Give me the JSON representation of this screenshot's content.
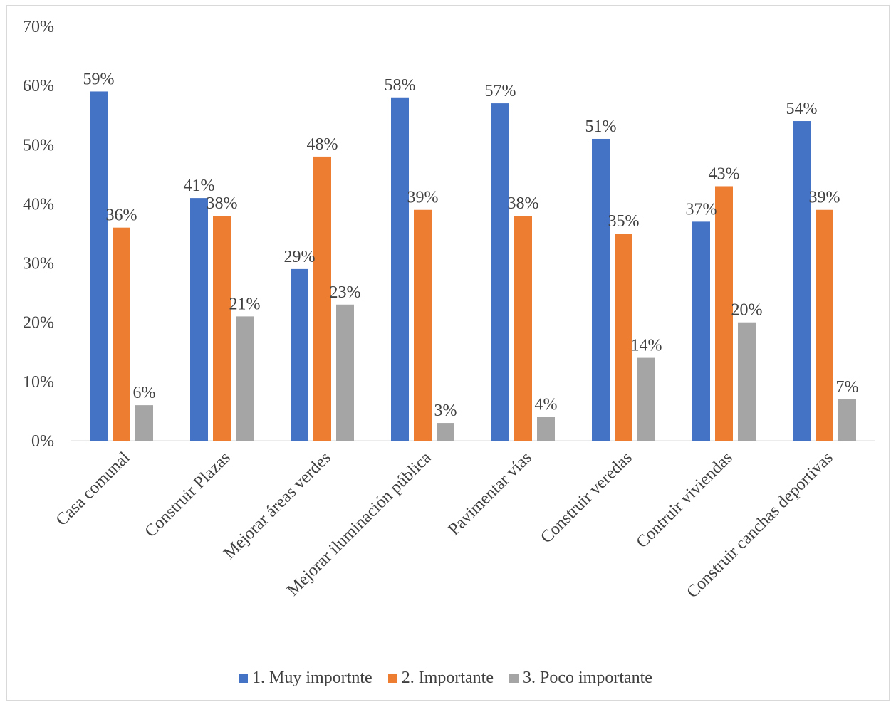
{
  "chart_data": {
    "type": "bar",
    "categories": [
      "Casa comunal",
      "Construir Plazas",
      "Mejorar áreas verdes",
      "Mejorar iluminación  pública",
      "Pavimentar vías",
      "Construir veredas",
      "Contruir viviendas",
      "Construir canchas deportivas"
    ],
    "series": [
      {
        "name": "1. Muy importnte",
        "color": "#4472C4",
        "values": [
          59,
          41,
          29,
          58,
          57,
          51,
          37,
          54
        ],
        "labels": [
          "59%",
          "41%",
          "29%",
          "58%",
          "57%",
          "51%",
          "37%",
          "54%"
        ]
      },
      {
        "name": "2. Importante",
        "color": "#ED7D31",
        "values": [
          36,
          38,
          48,
          39,
          38,
          35,
          43,
          39
        ],
        "labels": [
          "36%",
          "38%",
          "48%",
          "39%",
          "38%",
          "35%",
          "43%",
          "39%"
        ]
      },
      {
        "name": "3. Poco importante",
        "color": "#A5A5A5",
        "values": [
          6,
          21,
          23,
          3,
          4,
          14,
          20,
          7
        ],
        "labels": [
          "6%",
          "21%",
          "23%",
          "3%",
          "4%",
          "14%",
          "20%",
          "7%"
        ]
      }
    ],
    "ylim": [
      0,
      70
    ],
    "yticks": [
      "0%",
      "10%",
      "20%",
      "30%",
      "40%",
      "50%",
      "60%",
      "70%"
    ],
    "title": "",
    "xlabel": "",
    "ylabel": "",
    "grid": false,
    "legend": "bottom"
  }
}
